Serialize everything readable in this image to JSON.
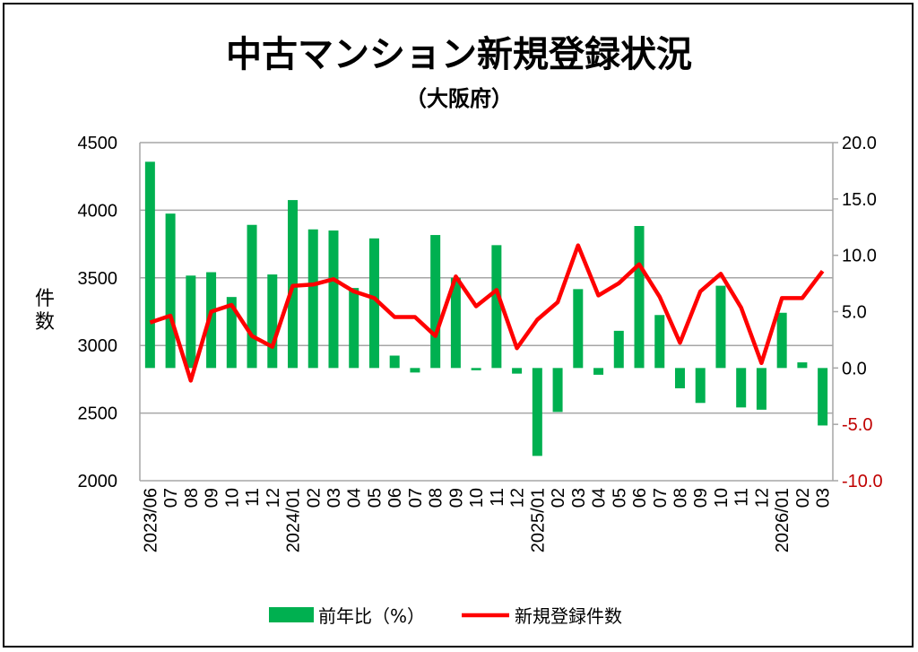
{
  "chart_data": {
    "type": "bar+line",
    "title": "中古マンション新規登録状況",
    "subtitle": "（大阪府）",
    "ylabel_left": "件数",
    "ylim_left": [
      2000,
      4500
    ],
    "yticks_left": [
      "4500",
      "4000",
      "3500",
      "3000",
      "2500",
      "2000"
    ],
    "ylim_right": [
      -10,
      20
    ],
    "yticks_right": [
      "20.0",
      "15.0",
      "10.0",
      "5.0",
      "0.0",
      "-5.0",
      "-10.0"
    ],
    "grid": true,
    "legend_position": "bottom",
    "categories": [
      "2023/06",
      "07",
      "08",
      "09",
      "10",
      "11",
      "12",
      "2024/01",
      "02",
      "03",
      "04",
      "05",
      "06",
      "07",
      "08",
      "09",
      "10",
      "11",
      "12",
      "2025/01",
      "02",
      "03",
      "04",
      "05",
      "06",
      "07",
      "08",
      "09",
      "10",
      "11",
      "12",
      "2026/01",
      "02",
      "03"
    ],
    "series": [
      {
        "name": "前年比（%）",
        "type": "bar",
        "axis": "right",
        "color": "#00b050",
        "values": [
          18.3,
          13.7,
          8.2,
          8.5,
          6.3,
          12.7,
          8.3,
          14.9,
          12.3,
          12.2,
          7.1,
          11.5,
          1.1,
          -0.4,
          11.8,
          8.0,
          -0.2,
          10.9,
          -0.5,
          -7.8,
          -3.9,
          7.0,
          -0.6,
          3.3,
          12.6,
          4.7,
          -1.8,
          -3.1,
          7.3,
          -3.5,
          -3.7,
          4.9,
          0.5,
          -5.1
        ]
      },
      {
        "name": "新規登録件数",
        "type": "line",
        "axis": "left",
        "color": "#ff0000",
        "values": [
          3170,
          3220,
          2740,
          3250,
          3300,
          3070,
          2990,
          3440,
          3450,
          3490,
          3400,
          3350,
          3210,
          3210,
          3070,
          3510,
          3290,
          3410,
          2980,
          3190,
          3320,
          3740,
          3370,
          3460,
          3600,
          3360,
          3020,
          3400,
          3530,
          3280,
          2870,
          3350,
          3350,
          3550
        ]
      }
    ],
    "negative_tick_color": "#c00000"
  }
}
